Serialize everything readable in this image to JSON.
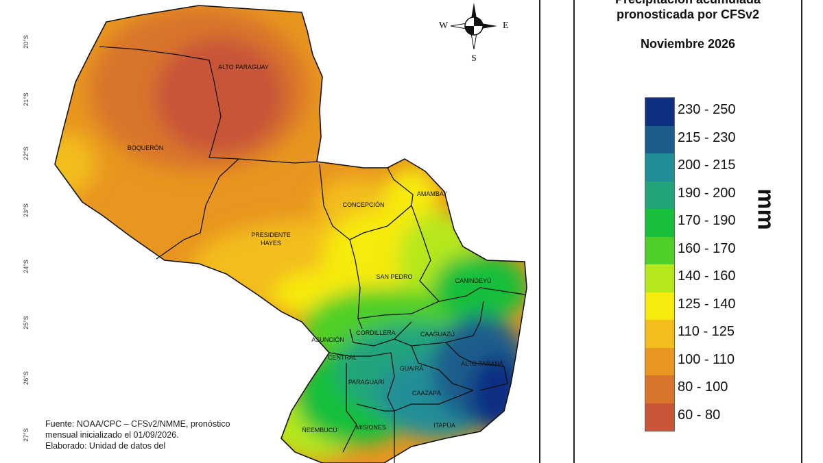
{
  "map": {
    "lat_ticks": [
      "20°S",
      "21°S",
      "22°S",
      "23°S",
      "24°S",
      "25°S",
      "26°S",
      "27°S"
    ],
    "compass": {
      "w": "W",
      "e": "E",
      "s": "S"
    },
    "departments": [
      {
        "id": "alto-paraguay",
        "name": "ALTO PARAGUAY"
      },
      {
        "id": "boqueron",
        "name": "BOQUERÓN"
      },
      {
        "id": "presidente-hayes-1",
        "name": "PRESIDENTE"
      },
      {
        "id": "presidente-hayes-2",
        "name": "HAYES"
      },
      {
        "id": "concepcion",
        "name": "CONCEPCIÓN"
      },
      {
        "id": "amambay",
        "name": "AMAMBAY"
      },
      {
        "id": "san-pedro",
        "name": "SAN PEDRO"
      },
      {
        "id": "canindeyu",
        "name": "CANINDEYÚ"
      },
      {
        "id": "asuncion",
        "name": "ASUNCIÓN"
      },
      {
        "id": "cordillera",
        "name": "CORDILLERA"
      },
      {
        "id": "caaguazu",
        "name": "CAAGUAZÚ"
      },
      {
        "id": "central",
        "name": "CENTRAL"
      },
      {
        "id": "alto-parana",
        "name": "ALTO PARANÁ"
      },
      {
        "id": "guaira",
        "name": "GUAIRÁ"
      },
      {
        "id": "paraguari",
        "name": "PARAGUARÍ"
      },
      {
        "id": "caazapa",
        "name": "CAAZAPÁ"
      },
      {
        "id": "neembucu",
        "name": "ÑEEMBUCÚ"
      },
      {
        "id": "misiones",
        "name": "MISIONES"
      },
      {
        "id": "itapua",
        "name": "ITAPÚA"
      }
    ],
    "source_lines": [
      "Fuente: NOAA/CPC – CFSv2/NMME, pronóstico",
      "mensual inicializado el 01/09/2026.",
      "Elaborado: Unidad de datos del"
    ]
  },
  "legend": {
    "title_line1": "Precipitación acumulada",
    "title_line2": "pronosticada por CFSv2",
    "month": "Noviembre 2026",
    "unit": "mm",
    "classes": [
      {
        "label": "230 - 250",
        "color": "#0f2f83"
      },
      {
        "label": "215 - 230",
        "color": "#1d5d8c"
      },
      {
        "label": "200 - 215",
        "color": "#228e97"
      },
      {
        "label": "190 - 200",
        "color": "#22a47b"
      },
      {
        "label": "170 - 190",
        "color": "#18bf3a"
      },
      {
        "label": "160 - 170",
        "color": "#4fcf27"
      },
      {
        "label": "140 - 160",
        "color": "#b6e81b"
      },
      {
        "label": "125 - 140",
        "color": "#f7ea0d"
      },
      {
        "label": "110 - 125",
        "color": "#f3bd1c"
      },
      {
        "label": "100 - 110",
        "color": "#e8961f"
      },
      {
        "label": "80 - 100",
        "color": "#d9742b"
      },
      {
        "label": "60 - 80",
        "color": "#c85538"
      }
    ]
  }
}
